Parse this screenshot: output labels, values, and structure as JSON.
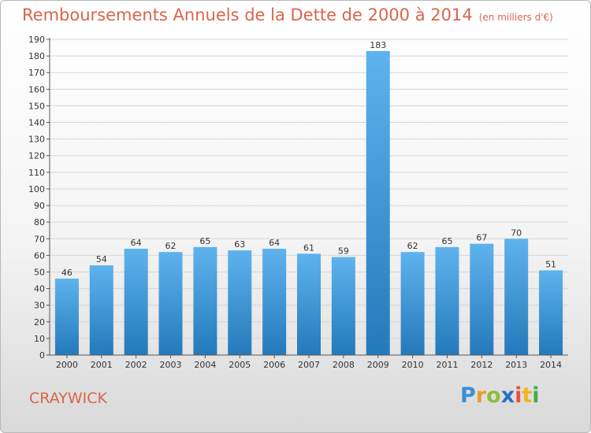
{
  "header": {
    "title": "Remboursements Annuels de la Dette de 2000 à 2014",
    "unit": "(en milliers d'€)"
  },
  "footer": {
    "town": "CRAYWICK",
    "logo": {
      "p": "P",
      "r": "r",
      "o": "o",
      "x": "x",
      "i": "i",
      "t": "t",
      "i2": "i"
    }
  },
  "colors": {
    "bar_top": "#5eb3ee",
    "bar_bottom": "#2479ba",
    "title": "#d9654a",
    "grid": "#d6d6d6"
  },
  "chart_data": {
    "type": "bar",
    "categories": [
      "2000",
      "2001",
      "2002",
      "2003",
      "2004",
      "2005",
      "2006",
      "2007",
      "2008",
      "2009",
      "2010",
      "2011",
      "2012",
      "2013",
      "2014"
    ],
    "values": [
      46,
      54,
      64,
      62,
      65,
      63,
      64,
      61,
      59,
      183,
      62,
      65,
      67,
      70,
      51
    ],
    "title": "Remboursements Annuels de la Dette de 2000 à 2014",
    "ylim": [
      0,
      190
    ],
    "yticks": [
      0,
      10,
      20,
      30,
      40,
      50,
      60,
      70,
      80,
      90,
      100,
      110,
      120,
      130,
      140,
      150,
      160,
      170,
      180,
      190
    ],
    "grid": true,
    "legend": "none"
  }
}
